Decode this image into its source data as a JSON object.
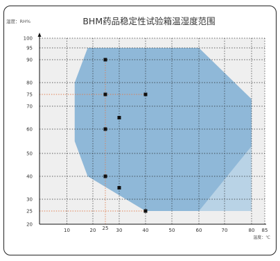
{
  "chart_data": {
    "type": "area",
    "title": "BHM药品稳定性试验箱温湿度范围",
    "ylabel": "湿度：RH%",
    "xlabel": "温度：℃",
    "xlim": [
      0,
      85
    ],
    "ylim": [
      20,
      100
    ],
    "x_ticks": [
      10,
      20,
      25,
      30,
      40,
      50,
      60,
      70,
      80,
      85
    ],
    "y_ticks": [
      20,
      25,
      30,
      40,
      50,
      60,
      70,
      75,
      80,
      90,
      95,
      100
    ],
    "grid": true,
    "region": {
      "name": "humidity-temperature-range",
      "color": "#8fb8d8",
      "points": [
        [
          18,
          95
        ],
        [
          60,
          95
        ],
        [
          80,
          73
        ],
        [
          80,
          25
        ],
        [
          60,
          25
        ],
        [
          40,
          25
        ],
        [
          18,
          40
        ],
        [
          13,
          55
        ],
        [
          13,
          80
        ]
      ]
    },
    "light_region": {
      "color": "#b9d3e6",
      "points": [
        [
          60,
          25
        ],
        [
          80,
          25
        ],
        [
          80,
          53
        ]
      ]
    },
    "markers": [
      {
        "x": 25,
        "y": 90
      },
      {
        "x": 25,
        "y": 75
      },
      {
        "x": 40,
        "y": 75
      },
      {
        "x": 30,
        "y": 65
      },
      {
        "x": 25,
        "y": 60
      },
      {
        "x": 25,
        "y": 40
      },
      {
        "x": 30,
        "y": 35
      },
      {
        "x": 40,
        "y": 25
      }
    ],
    "guides": [
      {
        "axis": "y",
        "value": 75,
        "x_to": 40,
        "color": "#e07a4a"
      },
      {
        "axis": "y",
        "value": 25,
        "x_to": 40,
        "color": "#e07a4a"
      },
      {
        "axis": "x",
        "value": 25,
        "y_to": 90,
        "color": "#e07a4a"
      }
    ]
  }
}
